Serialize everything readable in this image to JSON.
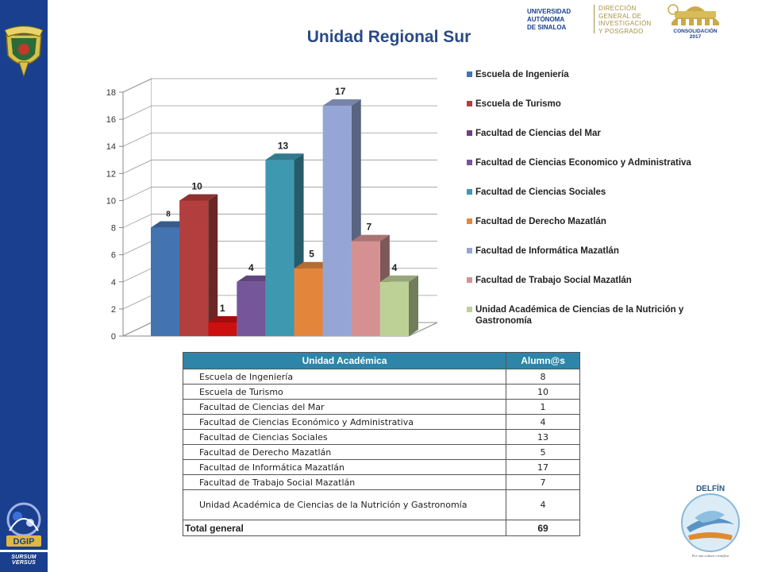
{
  "page": {
    "title": "Unidad Regional Sur"
  },
  "header": {
    "university_lines": [
      "UNIVERSIDAD",
      "AUTÓNOMA",
      "DE SINALOA"
    ],
    "department_lines": [
      "DIRECCIÓN",
      "GENERAL DE",
      "INVESTIGACIÓN",
      "Y POSGRADO"
    ],
    "consolidation_text": "CONSOLIDACIÓN",
    "consolidation_year": "2017"
  },
  "sidebar": {
    "motto": "SURSUM VERSUS",
    "logo_text": "DGIP"
  },
  "footer_logo": {
    "name": "DELFÍN",
    "tagline": "Por una cultura científica"
  },
  "chart_data": {
    "type": "bar",
    "categories": [
      "Escuela de Ingeniería",
      "Escuela de Turismo",
      "Facultad de Ciencias del Mar",
      "Facultad de Ciencias Economico y Administrativa",
      "Facultad de Ciencias Sociales",
      "Facultad de Derecho Mazatlán",
      "Facultad de Informática Mazatlán",
      "Facultad de Trabajo Social Mazatlán",
      "Unidad Académica de Ciencias de la Nutrición y Gastronomía"
    ],
    "values": [
      8,
      10,
      1,
      4,
      13,
      5,
      17,
      7,
      4
    ],
    "data_labels": [
      "8",
      "10",
      "1",
      "4",
      "13",
      "5",
      "17",
      "7",
      "4"
    ],
    "colors": [
      "#4473b1",
      "#b23f3d",
      "#cc1010",
      "#76569a",
      "#3e98b0",
      "#e3863c",
      "#95a6d6",
      "#d59192",
      "#bdd197"
    ],
    "legend_colors": [
      "#4473b1",
      "#b23f3d",
      "#6e3f82",
      "#76569a",
      "#3e98b0",
      "#e3863c",
      "#95a6d6",
      "#d59192",
      "#bdd197"
    ],
    "ylim": [
      0,
      18
    ],
    "yticks": [
      "0",
      "2",
      "4",
      "6",
      "8",
      "10",
      "12",
      "14",
      "16",
      "18"
    ],
    "grid": true,
    "three_d": true,
    "legend_position": "right",
    "legend_lines": [
      [
        "Escuela de Ingeniería"
      ],
      [
        "Escuela de Turismo"
      ],
      [
        "Facultad de Ciencias del Mar"
      ],
      [
        "Facultad de Ciencias Economico y Administrativa"
      ],
      [
        "Facultad de Ciencias Sociales"
      ],
      [
        "Facultad de Derecho Mazatlán"
      ],
      [
        "Facultad de Informática Mazatlán"
      ],
      [
        "Facultad de Trabajo Social Mazatlán"
      ],
      [
        "Unidad Académica de Ciencias de la Nutrición y",
        "Gastronomía"
      ]
    ]
  },
  "table": {
    "headers": [
      "Unidad Académica",
      "Alumn@s"
    ],
    "rows": [
      {
        "name": "Escuela de Ingeniería",
        "value": "8"
      },
      {
        "name": "Escuela de Turismo",
        "value": "10"
      },
      {
        "name": "Facultad de Ciencias del Mar",
        "value": "1"
      },
      {
        "name": "Facultad de Ciencias Económico y Administrativa",
        "value": "4"
      },
      {
        "name": "Facultad de Ciencias Sociales",
        "value": "13"
      },
      {
        "name": "Facultad de Derecho Mazatlán",
        "value": "5"
      },
      {
        "name": "Facultad de Informática Mazatlán",
        "value": "17"
      },
      {
        "name": "Facultad de Trabajo Social Mazatlán",
        "value": "7"
      },
      {
        "name": "Unidad Académica de Ciencias de la Nutrición y Gastronomía",
        "value": "4"
      }
    ],
    "total_label": "Total general",
    "total_value": "69"
  }
}
